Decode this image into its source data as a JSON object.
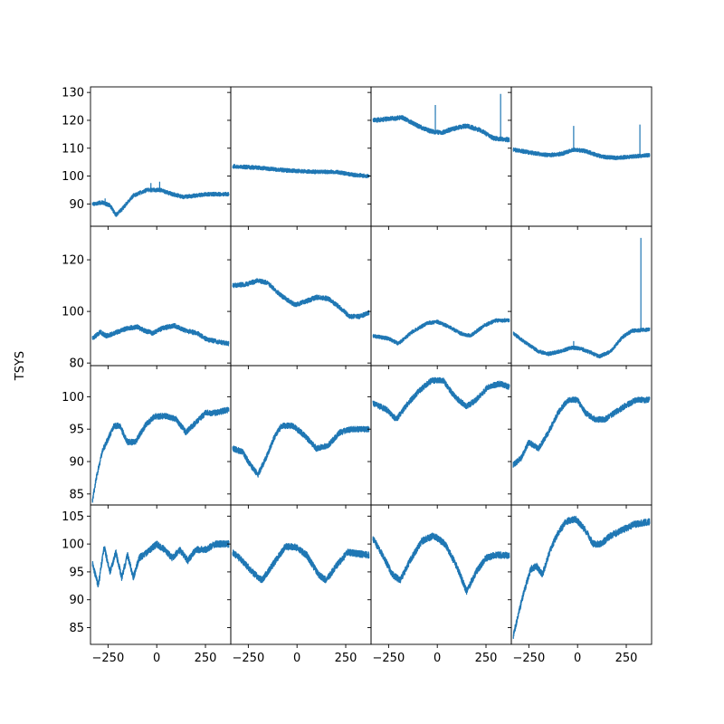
{
  "chart_data": {
    "type": "line",
    "ylabel": "TSYS",
    "line_color": "#1f77b4",
    "x_range": [
      -340,
      380
    ],
    "x_ticks": [
      -250,
      0,
      250
    ],
    "x_tick_labels": [
      "−250",
      "0",
      "250"
    ],
    "rows": [
      {
        "ylim": [
          82,
          132
        ],
        "y_ticks": [
          90,
          100,
          110,
          120,
          130
        ],
        "y_tick_labels": [
          "90",
          "100",
          "110",
          "120",
          "130"
        ]
      },
      {
        "ylim": [
          79,
          133
        ],
        "y_ticks": [
          80,
          100,
          120
        ],
        "y_tick_labels": [
          "80",
          "100",
          "120"
        ]
      },
      {
        "ylim": [
          83.3,
          104.8
        ],
        "y_ticks": [
          85,
          90,
          95,
          100
        ],
        "y_tick_labels": [
          "85",
          "90",
          "95",
          "100"
        ]
      },
      {
        "ylim": [
          82,
          107
        ],
        "y_ticks": [
          85,
          90,
          95,
          100,
          105
        ],
        "y_tick_labels": [
          "85",
          "90",
          "95",
          "100",
          "105"
        ]
      }
    ],
    "series": [
      {
        "row": 0,
        "col": 0,
        "noise": 0.7,
        "points": [
          [
            -330,
            90
          ],
          [
            -280,
            90.5
          ],
          [
            -240,
            89.5
          ],
          [
            -210,
            86
          ],
          [
            -180,
            88
          ],
          [
            -120,
            93
          ],
          [
            -50,
            95
          ],
          [
            20,
            95
          ],
          [
            80,
            93.5
          ],
          [
            140,
            92.5
          ],
          [
            200,
            93
          ],
          [
            260,
            93.5
          ],
          [
            370,
            93.5
          ]
        ],
        "spikes": [
          [
            -265,
            92
          ],
          [
            15,
            98
          ],
          [
            -30,
            97.5
          ]
        ]
      },
      {
        "row": 0,
        "col": 1,
        "noise": 0.7,
        "points": [
          [
            -330,
            103.5
          ],
          [
            -200,
            103
          ],
          [
            -50,
            102
          ],
          [
            100,
            101.5
          ],
          [
            200,
            101.5
          ],
          [
            280,
            100.5
          ],
          [
            370,
            100
          ]
        ],
        "spikes": []
      },
      {
        "row": 0,
        "col": 2,
        "noise": 0.8,
        "points": [
          [
            -330,
            120
          ],
          [
            -250,
            120.5
          ],
          [
            -180,
            121
          ],
          [
            -100,
            118
          ],
          [
            -30,
            116
          ],
          [
            20,
            115.5
          ],
          [
            80,
            117
          ],
          [
            150,
            118
          ],
          [
            220,
            116.5
          ],
          [
            290,
            113.5
          ],
          [
            370,
            113
          ]
        ],
        "spikes": [
          [
            -10,
            125.5
          ],
          [
            325,
            129.5
          ]
        ]
      },
      {
        "row": 0,
        "col": 3,
        "noise": 0.7,
        "points": [
          [
            -330,
            109.5
          ],
          [
            -250,
            108.5
          ],
          [
            -150,
            107.5
          ],
          [
            -80,
            108
          ],
          [
            -20,
            109.5
          ],
          [
            40,
            109
          ],
          [
            120,
            107
          ],
          [
            200,
            106.5
          ],
          [
            280,
            107
          ],
          [
            370,
            107.5
          ]
        ],
        "spikes": [
          [
            -20,
            118
          ],
          [
            320,
            118.5
          ]
        ]
      },
      {
        "row": 1,
        "col": 0,
        "noise": 0.9,
        "points": [
          [
            -330,
            89.5
          ],
          [
            -290,
            92
          ],
          [
            -260,
            90.5
          ],
          [
            -220,
            91.5
          ],
          [
            -150,
            93.5
          ],
          [
            -100,
            94
          ],
          [
            -60,
            92.5
          ],
          [
            -20,
            91.5
          ],
          [
            30,
            93.5
          ],
          [
            90,
            94.5
          ],
          [
            150,
            92.5
          ],
          [
            210,
            91.5
          ],
          [
            260,
            89
          ],
          [
            300,
            88.5
          ],
          [
            370,
            87.5
          ]
        ],
        "spikes": []
      },
      {
        "row": 1,
        "col": 1,
        "noise": 0.9,
        "points": [
          [
            -330,
            110
          ],
          [
            -260,
            110.5
          ],
          [
            -200,
            112
          ],
          [
            -150,
            111
          ],
          [
            -80,
            106
          ],
          [
            -10,
            102.5
          ],
          [
            50,
            104
          ],
          [
            100,
            105.5
          ],
          [
            160,
            105
          ],
          [
            220,
            101.5
          ],
          [
            270,
            98
          ],
          [
            320,
            98
          ],
          [
            370,
            99.5
          ]
        ],
        "spikes": []
      },
      {
        "row": 1,
        "col": 2,
        "noise": 0.7,
        "points": [
          [
            -330,
            90.5
          ],
          [
            -250,
            89.5
          ],
          [
            -200,
            87.5
          ],
          [
            -130,
            92
          ],
          [
            -50,
            95.5
          ],
          [
            0,
            96
          ],
          [
            60,
            94
          ],
          [
            120,
            91.5
          ],
          [
            170,
            90.5
          ],
          [
            240,
            94.5
          ],
          [
            300,
            96.5
          ],
          [
            370,
            96.5
          ]
        ],
        "spikes": []
      },
      {
        "row": 1,
        "col": 3,
        "noise": 0.7,
        "points": [
          [
            -330,
            91.5
          ],
          [
            -270,
            88
          ],
          [
            -200,
            84.5
          ],
          [
            -150,
            83.5
          ],
          [
            -90,
            84.5
          ],
          [
            -30,
            86
          ],
          [
            20,
            85.5
          ],
          [
            70,
            84
          ],
          [
            110,
            82.5
          ],
          [
            170,
            84.5
          ],
          [
            230,
            90
          ],
          [
            280,
            92.5
          ],
          [
            370,
            93
          ]
        ],
        "spikes": [
          [
            -20,
            88.5
          ],
          [
            325,
            128.5
          ]
        ]
      },
      {
        "row": 2,
        "col": 0,
        "noise": 0.45,
        "points": [
          [
            -330,
            84
          ],
          [
            -310,
            87.5
          ],
          [
            -280,
            91.5
          ],
          [
            -250,
            93.5
          ],
          [
            -220,
            95.5
          ],
          [
            -190,
            95.5
          ],
          [
            -150,
            93
          ],
          [
            -110,
            93
          ],
          [
            -60,
            95.5
          ],
          [
            -10,
            97
          ],
          [
            50,
            97
          ],
          [
            100,
            96.5
          ],
          [
            150,
            94.5
          ],
          [
            200,
            96
          ],
          [
            250,
            97.5
          ],
          [
            300,
            97.5
          ],
          [
            370,
            98
          ]
        ],
        "spikes": []
      },
      {
        "row": 2,
        "col": 1,
        "noise": 0.45,
        "points": [
          [
            -330,
            92
          ],
          [
            -280,
            91.5
          ],
          [
            -240,
            89.5
          ],
          [
            -200,
            88
          ],
          [
            -160,
            90.5
          ],
          [
            -120,
            93.5
          ],
          [
            -80,
            95.5
          ],
          [
            -20,
            95.5
          ],
          [
            40,
            94
          ],
          [
            100,
            92
          ],
          [
            160,
            92.5
          ],
          [
            220,
            94.5
          ],
          [
            280,
            95
          ],
          [
            370,
            95
          ]
        ],
        "spikes": []
      },
      {
        "row": 2,
        "col": 2,
        "noise": 0.45,
        "points": [
          [
            -330,
            99
          ],
          [
            -260,
            98
          ],
          [
            -210,
            96.5
          ],
          [
            -150,
            99
          ],
          [
            -90,
            101
          ],
          [
            -30,
            102.5
          ],
          [
            30,
            102.5
          ],
          [
            90,
            100
          ],
          [
            150,
            98.5
          ],
          [
            200,
            99.5
          ],
          [
            260,
            101.5
          ],
          [
            320,
            102
          ],
          [
            370,
            101.5
          ]
        ],
        "spikes": []
      },
      {
        "row": 2,
        "col": 3,
        "noise": 0.45,
        "points": [
          [
            -330,
            89.5
          ],
          [
            -290,
            90.5
          ],
          [
            -250,
            93
          ],
          [
            -200,
            92
          ],
          [
            -150,
            94.5
          ],
          [
            -100,
            97.5
          ],
          [
            -50,
            99.5
          ],
          [
            0,
            99.5
          ],
          [
            40,
            97.5
          ],
          [
            90,
            96.5
          ],
          [
            140,
            96.5
          ],
          [
            190,
            97.5
          ],
          [
            240,
            98.5
          ],
          [
            300,
            99.5
          ],
          [
            370,
            99.5
          ]
        ],
        "spikes": []
      },
      {
        "row": 3,
        "col": 0,
        "noise": 0.6,
        "points": [
          [
            -330,
            96.5
          ],
          [
            -300,
            92.5
          ],
          [
            -270,
            99.5
          ],
          [
            -240,
            95
          ],
          [
            -210,
            98.5
          ],
          [
            -180,
            94
          ],
          [
            -150,
            98
          ],
          [
            -120,
            94
          ],
          [
            -90,
            97.5
          ],
          [
            -50,
            98.5
          ],
          [
            0,
            100
          ],
          [
            40,
            99
          ],
          [
            80,
            97.5
          ],
          [
            120,
            99
          ],
          [
            160,
            97
          ],
          [
            200,
            99
          ],
          [
            250,
            99
          ],
          [
            300,
            100
          ],
          [
            370,
            100
          ]
        ],
        "spikes": []
      },
      {
        "row": 3,
        "col": 1,
        "noise": 0.6,
        "points": [
          [
            -330,
            98.5
          ],
          [
            -280,
            97
          ],
          [
            -230,
            95
          ],
          [
            -180,
            93.5
          ],
          [
            -120,
            96.5
          ],
          [
            -60,
            99.5
          ],
          [
            -10,
            99.5
          ],
          [
            50,
            98
          ],
          [
            110,
            94.5
          ],
          [
            150,
            93.5
          ],
          [
            200,
            96
          ],
          [
            260,
            98.5
          ],
          [
            370,
            98
          ]
        ],
        "spikes": []
      },
      {
        "row": 3,
        "col": 2,
        "noise": 0.6,
        "points": [
          [
            -330,
            101
          ],
          [
            -280,
            98
          ],
          [
            -230,
            94.5
          ],
          [
            -190,
            93.5
          ],
          [
            -140,
            97
          ],
          [
            -80,
            100.5
          ],
          [
            -20,
            101.5
          ],
          [
            40,
            100
          ],
          [
            100,
            96
          ],
          [
            150,
            91.5
          ],
          [
            200,
            95
          ],
          [
            250,
            97.5
          ],
          [
            300,
            98
          ],
          [
            370,
            98
          ]
        ],
        "spikes": []
      },
      {
        "row": 3,
        "col": 3,
        "noise": 0.6,
        "points": [
          [
            -330,
            83.5
          ],
          [
            -300,
            88
          ],
          [
            -270,
            92
          ],
          [
            -240,
            95.5
          ],
          [
            -210,
            96
          ],
          [
            -180,
            94.5
          ],
          [
            -140,
            99
          ],
          [
            -100,
            102
          ],
          [
            -60,
            104
          ],
          [
            -10,
            104.5
          ],
          [
            40,
            102.5
          ],
          [
            80,
            100
          ],
          [
            120,
            100
          ],
          [
            170,
            101.5
          ],
          [
            230,
            102.5
          ],
          [
            290,
            103.5
          ],
          [
            370,
            104
          ]
        ],
        "spikes": []
      }
    ]
  }
}
